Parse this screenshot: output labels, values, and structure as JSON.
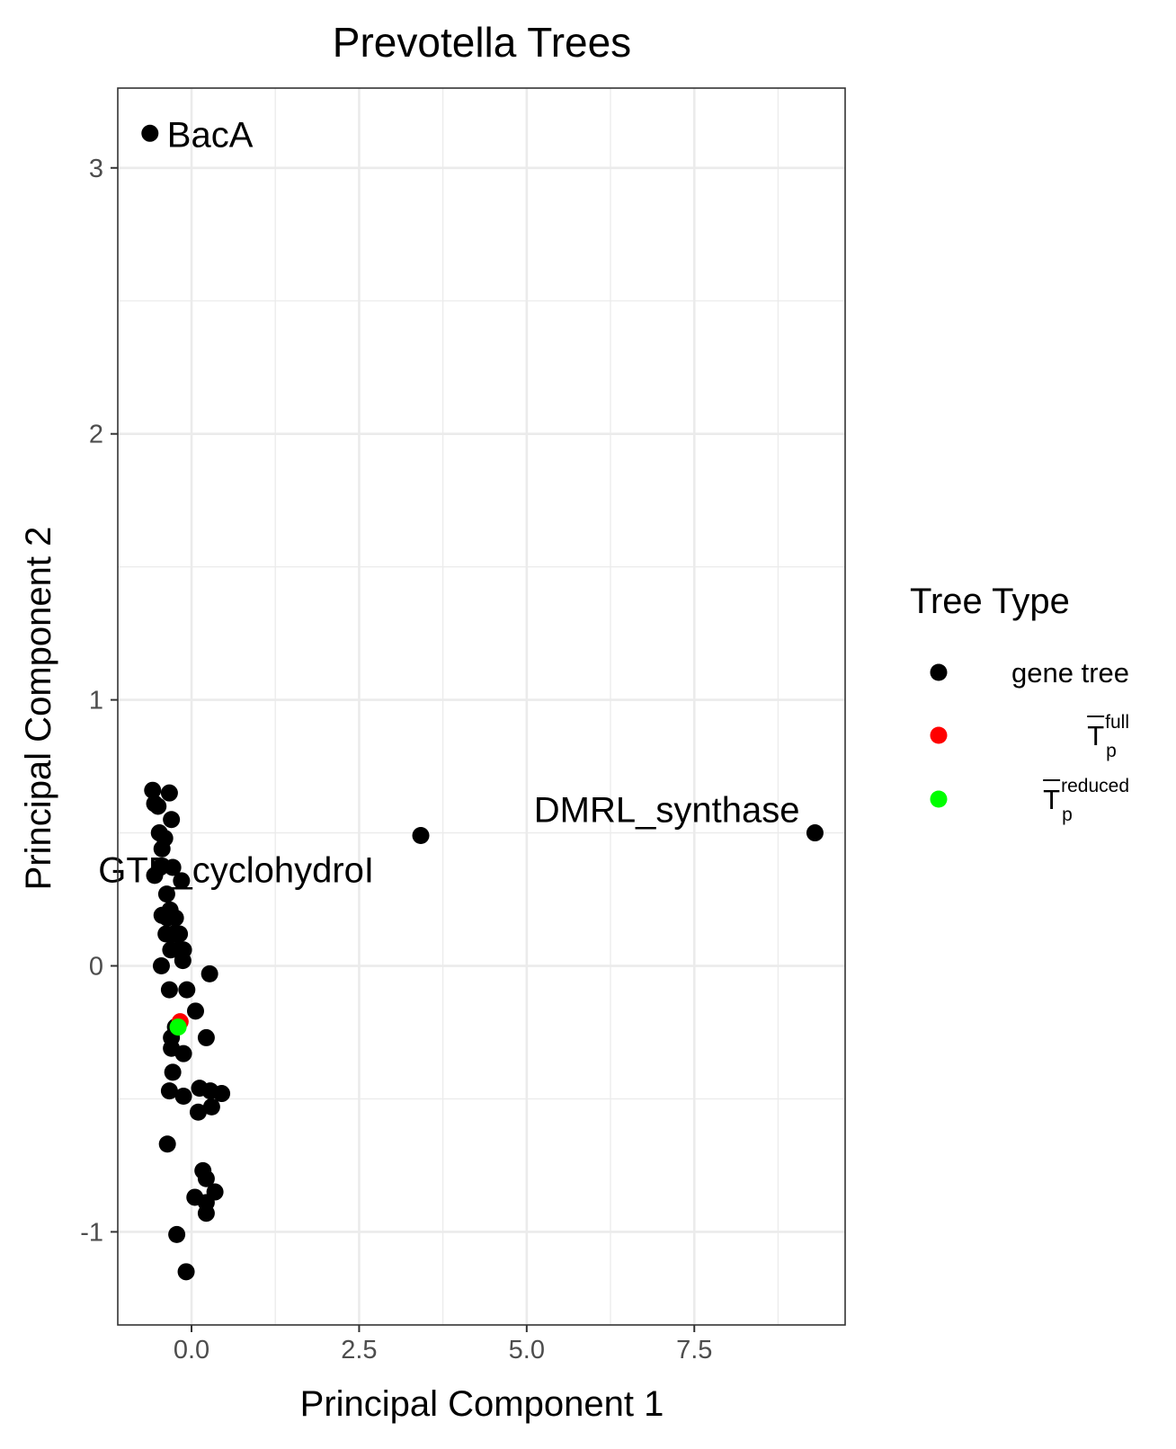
{
  "chart_data": {
    "type": "scatter",
    "title": "Prevotella Trees",
    "xlabel": "Principal Component 1",
    "ylabel": "Principal Component 2",
    "xlim": [
      -1.1,
      9.75
    ],
    "ylim": [
      -1.35,
      3.3
    ],
    "xticks": [
      0.0,
      2.5,
      5.0,
      7.5
    ],
    "xtick_labels": [
      "0.0",
      "2.5",
      "5.0",
      "7.5"
    ],
    "yticks": [
      -1,
      0,
      1,
      2,
      3
    ],
    "ytick_labels": [
      "-1",
      "0",
      "1",
      "2",
      "3"
    ],
    "grid": true,
    "legend": {
      "title": "Tree Type",
      "placement": "right",
      "entries": [
        {
          "label": "gene tree",
          "color": "#000000"
        },
        {
          "label": "T",
          "sup": "full",
          "sub": "p",
          "color": "#ff0000"
        },
        {
          "label": "T",
          "sup": "reduced",
          "sub": "p",
          "color": "#00ff00"
        }
      ]
    },
    "annotations": [
      {
        "text": "BacA",
        "x": -0.62,
        "y": 3.13
      },
      {
        "text": "DMRL_synthase",
        "x": 9.3,
        "y": 0.5
      },
      {
        "text": "GTP_cyclohydroI",
        "x": 3.42,
        "y": 0.49
      }
    ],
    "series": [
      {
        "name": "gene tree",
        "color": "#000000",
        "points": [
          [
            -0.62,
            3.13
          ],
          [
            9.3,
            0.5
          ],
          [
            3.42,
            0.49
          ],
          [
            -0.58,
            0.66
          ],
          [
            -0.55,
            0.61
          ],
          [
            -0.5,
            0.6
          ],
          [
            -0.48,
            0.5
          ],
          [
            -0.44,
            0.44
          ],
          [
            -0.4,
            0.48
          ],
          [
            -0.33,
            0.65
          ],
          [
            -0.3,
            0.55
          ],
          [
            -0.55,
            0.34
          ],
          [
            -0.47,
            0.37
          ],
          [
            -0.28,
            0.37
          ],
          [
            -0.15,
            0.32
          ],
          [
            -0.37,
            0.27
          ],
          [
            -0.44,
            0.19
          ],
          [
            -0.36,
            0.18
          ],
          [
            -0.32,
            0.21
          ],
          [
            -0.24,
            0.18
          ],
          [
            -0.38,
            0.12
          ],
          [
            -0.27,
            0.12
          ],
          [
            -0.18,
            0.12
          ],
          [
            -0.31,
            0.06
          ],
          [
            -0.12,
            0.06
          ],
          [
            -0.2,
            0.06
          ],
          [
            -0.13,
            0.02
          ],
          [
            -0.45,
            0.0
          ],
          [
            0.27,
            -0.03
          ],
          [
            -0.33,
            -0.09
          ],
          [
            -0.07,
            -0.09
          ],
          [
            0.06,
            -0.17
          ],
          [
            -0.24,
            -0.23
          ],
          [
            0.22,
            -0.27
          ],
          [
            -0.3,
            -0.27
          ],
          [
            -0.3,
            -0.31
          ],
          [
            -0.12,
            -0.33
          ],
          [
            -0.28,
            -0.4
          ],
          [
            0.12,
            -0.46
          ],
          [
            0.28,
            -0.47
          ],
          [
            -0.33,
            -0.47
          ],
          [
            0.45,
            -0.48
          ],
          [
            -0.12,
            -0.49
          ],
          [
            0.3,
            -0.53
          ],
          [
            0.1,
            -0.55
          ],
          [
            -0.36,
            -0.67
          ],
          [
            0.17,
            -0.77
          ],
          [
            0.22,
            -0.8
          ],
          [
            0.35,
            -0.85
          ],
          [
            0.05,
            -0.87
          ],
          [
            0.22,
            -0.89
          ],
          [
            0.22,
            -0.93
          ],
          [
            -0.22,
            -1.01
          ],
          [
            -0.08,
            -1.15
          ]
        ]
      },
      {
        "name": "T full p",
        "color": "#ff0000",
        "points": [
          [
            -0.17,
            -0.21
          ]
        ]
      },
      {
        "name": "T reduced p",
        "color": "#00ff00",
        "points": [
          [
            -0.2,
            -0.23
          ]
        ]
      }
    ]
  }
}
